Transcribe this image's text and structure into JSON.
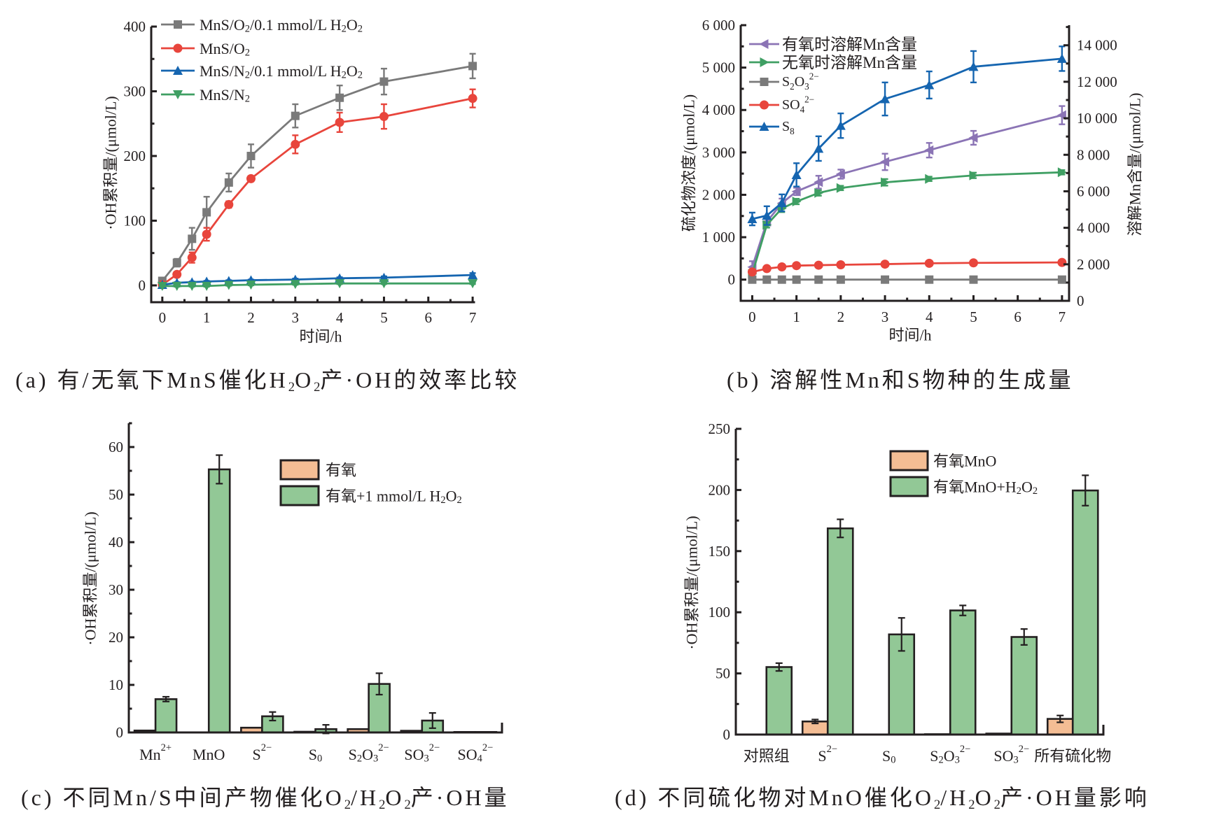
{
  "chart_data": [
    {
      "panel": "a",
      "type": "line",
      "title": "",
      "caption": "(a) 有/无氧下MnS催化H_{2}O_{2}产·OH的效率比较",
      "xlabel": "时间/h",
      "ylabel": "·OH累积量/(μmol/L)",
      "xlim": [
        -0.25,
        7.03
      ],
      "ylim": [
        -26,
        400
      ],
      "xticks": [
        0,
        1,
        2,
        3,
        4,
        5,
        6,
        7
      ],
      "xtick_labels": [
        "0",
        "1",
        "2",
        "3",
        "4",
        "5",
        "6",
        "7"
      ],
      "yticks": [
        0,
        100,
        200,
        300,
        400
      ],
      "ytick_labels": [
        "0",
        "100",
        "200",
        "300",
        "400"
      ],
      "grid": false,
      "legend_position": "top-left",
      "x": [
        0,
        0.33,
        0.67,
        1,
        1.5,
        2,
        3,
        4,
        5,
        7
      ],
      "series": [
        {
          "name": "MnS/O_{2}/0.1 mmol/L H_{2}O_{2}",
          "color": "#7a7a7a",
          "marker": "square",
          "values": [
            7,
            35,
            72,
            113,
            159,
            200,
            262,
            290,
            315,
            339
          ],
          "errors": [
            4,
            6,
            17,
            24,
            14,
            18,
            18,
            19,
            20,
            19
          ]
        },
        {
          "name": "MnS/O_{2}",
          "color": "#e8453c",
          "marker": "circle",
          "values": [
            1,
            17,
            43,
            79,
            125,
            165,
            218,
            252,
            261,
            289
          ],
          "errors": [
            1,
            3,
            8,
            10,
            5,
            4,
            14,
            15,
            19,
            14
          ]
        },
        {
          "name": "MnS/N_{2}/0.1 mmol/L H_{2}O_{2}",
          "color": "#1565b0",
          "marker": "triangle-up",
          "values": [
            1,
            4,
            5,
            6,
            7,
            8,
            9,
            11,
            12,
            16
          ],
          "errors": [
            1,
            1,
            1,
            1,
            1,
            1,
            1.5,
            1.5,
            2,
            3
          ]
        },
        {
          "name": "MnS/N_{2}",
          "color": "#3f9f63",
          "marker": "triangle-down",
          "values": [
            -1,
            -1,
            -1,
            -1,
            0.5,
            1,
            2,
            3,
            3,
            3
          ],
          "errors": [
            1,
            1,
            1,
            1,
            1,
            1,
            1,
            1,
            1,
            1
          ]
        }
      ]
    },
    {
      "panel": "b",
      "type": "line",
      "title": "",
      "caption": "(b) 溶解性Mn和S物种的生成量",
      "xlabel": "时间/h",
      "ylabel": "硫化物浓度/(μmol/L)",
      "ylabel_right": "溶解Mn含量/(μmol/L)",
      "xlim": [
        -0.26,
        7.16
      ],
      "ylim": [
        -500,
        6000
      ],
      "ylim_right": [
        0,
        15100
      ],
      "xticks": [
        0,
        1,
        2,
        3,
        4,
        5,
        6,
        7
      ],
      "xtick_labels": [
        "0",
        "1",
        "2",
        "3",
        "4",
        "5",
        "6",
        "7"
      ],
      "yticks": [
        0,
        1000,
        2000,
        3000,
        4000,
        5000,
        6000
      ],
      "ytick_labels": [
        "0",
        "1 000",
        "2 000",
        "3 000",
        "4 000",
        "5 000",
        "6 000"
      ],
      "yticks_right": [
        0,
        2000,
        4000,
        6000,
        8000,
        10000,
        12000,
        14000
      ],
      "ytick_labels_right": [
        "0",
        "2 000",
        "4 000",
        "6 000",
        "8 000",
        "10 000",
        "12 000",
        "14 000"
      ],
      "grid": false,
      "legend_position": "top-left",
      "x": [
        0,
        0.33,
        0.67,
        1,
        1.5,
        2,
        3,
        4,
        5,
        7
      ],
      "series": [
        {
          "name": "有氧时溶解Mn含量",
          "axis": "right",
          "color": "#8b74b5",
          "marker": "triangle-left",
          "values": [
            1850,
            4330,
            5350,
            5990,
            6500,
            6940,
            7610,
            8250,
            8930,
            10170
          ],
          "errors": [
            320,
            200,
            250,
            200,
            350,
            250,
            450,
            400,
            380,
            500
          ]
        },
        {
          "name": "无氧时溶解Mn含量",
          "axis": "right",
          "color": "#3f9f63",
          "marker": "triangle-right",
          "values": [
            1470,
            4160,
            5060,
            5440,
            5910,
            6180,
            6490,
            6680,
            6870,
            7040
          ],
          "errors": [
            150,
            150,
            200,
            150,
            150,
            120,
            180,
            120,
            150,
            120
          ]
        },
        {
          "name": "S_{2}O_{3}^{2−}",
          "axis": "left",
          "color": "#7a7a7a",
          "marker": "square",
          "values": [
            0,
            0,
            0,
            0,
            0,
            0,
            0,
            0,
            0,
            0
          ],
          "errors": null
        },
        {
          "name": "SO_{4}^{2−}",
          "axis": "left",
          "color": "#e8453c",
          "marker": "circle",
          "values": [
            180,
            260,
            300,
            330,
            340,
            350,
            365,
            385,
            395,
            405
          ],
          "errors": null
        },
        {
          "name": "S_{8}",
          "axis": "left",
          "color": "#1565b0",
          "marker": "triangle-up",
          "values": [
            1430,
            1510,
            1810,
            2470,
            3090,
            3630,
            4260,
            4590,
            5020,
            5210
          ],
          "errors": [
            150,
            220,
            200,
            275,
            290,
            290,
            390,
            320,
            370,
            290
          ]
        }
      ]
    },
    {
      "panel": "c",
      "type": "bar",
      "title": "",
      "caption": "(c) 不同Mn/S中间产物催化O_{2}/H_{2}O_{2}产·OH量",
      "xlabel": "",
      "ylabel": "·OH累积量/(μmol/L)",
      "ylim": [
        0,
        65
      ],
      "yticks": [
        0,
        10,
        20,
        30,
        40,
        50,
        60
      ],
      "ytick_labels": [
        "0",
        "10",
        "20",
        "30",
        "40",
        "50",
        "60"
      ],
      "grid": false,
      "legend_position": "top-right",
      "categories": [
        "Mn^{2+}",
        "MnO",
        "S^{2−}",
        "S_{0}",
        "S_{2}O_{3}^{2−}",
        "SO_{3}^{2−}",
        "SO_{4}^{2−}"
      ],
      "series": [
        {
          "name": "有氧",
          "color": "#f4bd94",
          "values": [
            0.4,
            0,
            1.0,
            0.15,
            0.7,
            0.35,
            0.1
          ],
          "errors": [
            0,
            0,
            0,
            0,
            0,
            0,
            0
          ]
        },
        {
          "name": "有氧+1 mmol/L H_{2}O_{2}",
          "color": "#92c896",
          "values": [
            7.0,
            55.3,
            3.4,
            0.7,
            10.2,
            2.5,
            0.1
          ],
          "errors": [
            0.5,
            3.0,
            0.9,
            0.9,
            2.25,
            1.6,
            0
          ]
        }
      ]
    },
    {
      "panel": "d",
      "type": "bar",
      "title": "",
      "caption": "(d) 不同硫化物对MnO催化O_{2}/H_{2}O_{2}产·OH量影响",
      "xlabel": "",
      "ylabel": "·OH累积量/(μmol/L)",
      "ylim": [
        0,
        250
      ],
      "yticks": [
        0,
        50,
        100,
        150,
        200,
        250
      ],
      "ytick_labels": [
        "0",
        "50",
        "100",
        "150",
        "200",
        "250"
      ],
      "grid": false,
      "legend_position": "top-right",
      "categories": [
        "对照组",
        "S^{2−}",
        "S_{0}",
        "S_{2}O_{3}^{2−}",
        "SO_{3}^{2−}",
        "所有硫化物"
      ],
      "series": [
        {
          "name": "有氧MnO",
          "color": "#f4bd94",
          "values": [
            0,
            10.7,
            0,
            0.3,
            0.8,
            12.8
          ],
          "errors": [
            0,
            1.6,
            0,
            0,
            0,
            2.8
          ]
        },
        {
          "name": "有氧MnO+H_{2}O_{2}",
          "color": "#92c896",
          "values": [
            55.2,
            168.6,
            81.9,
            101.5,
            79.8,
            199.6
          ],
          "errors": [
            3.2,
            7.4,
            13.5,
            4.1,
            6.5,
            12.4
          ]
        }
      ]
    }
  ]
}
